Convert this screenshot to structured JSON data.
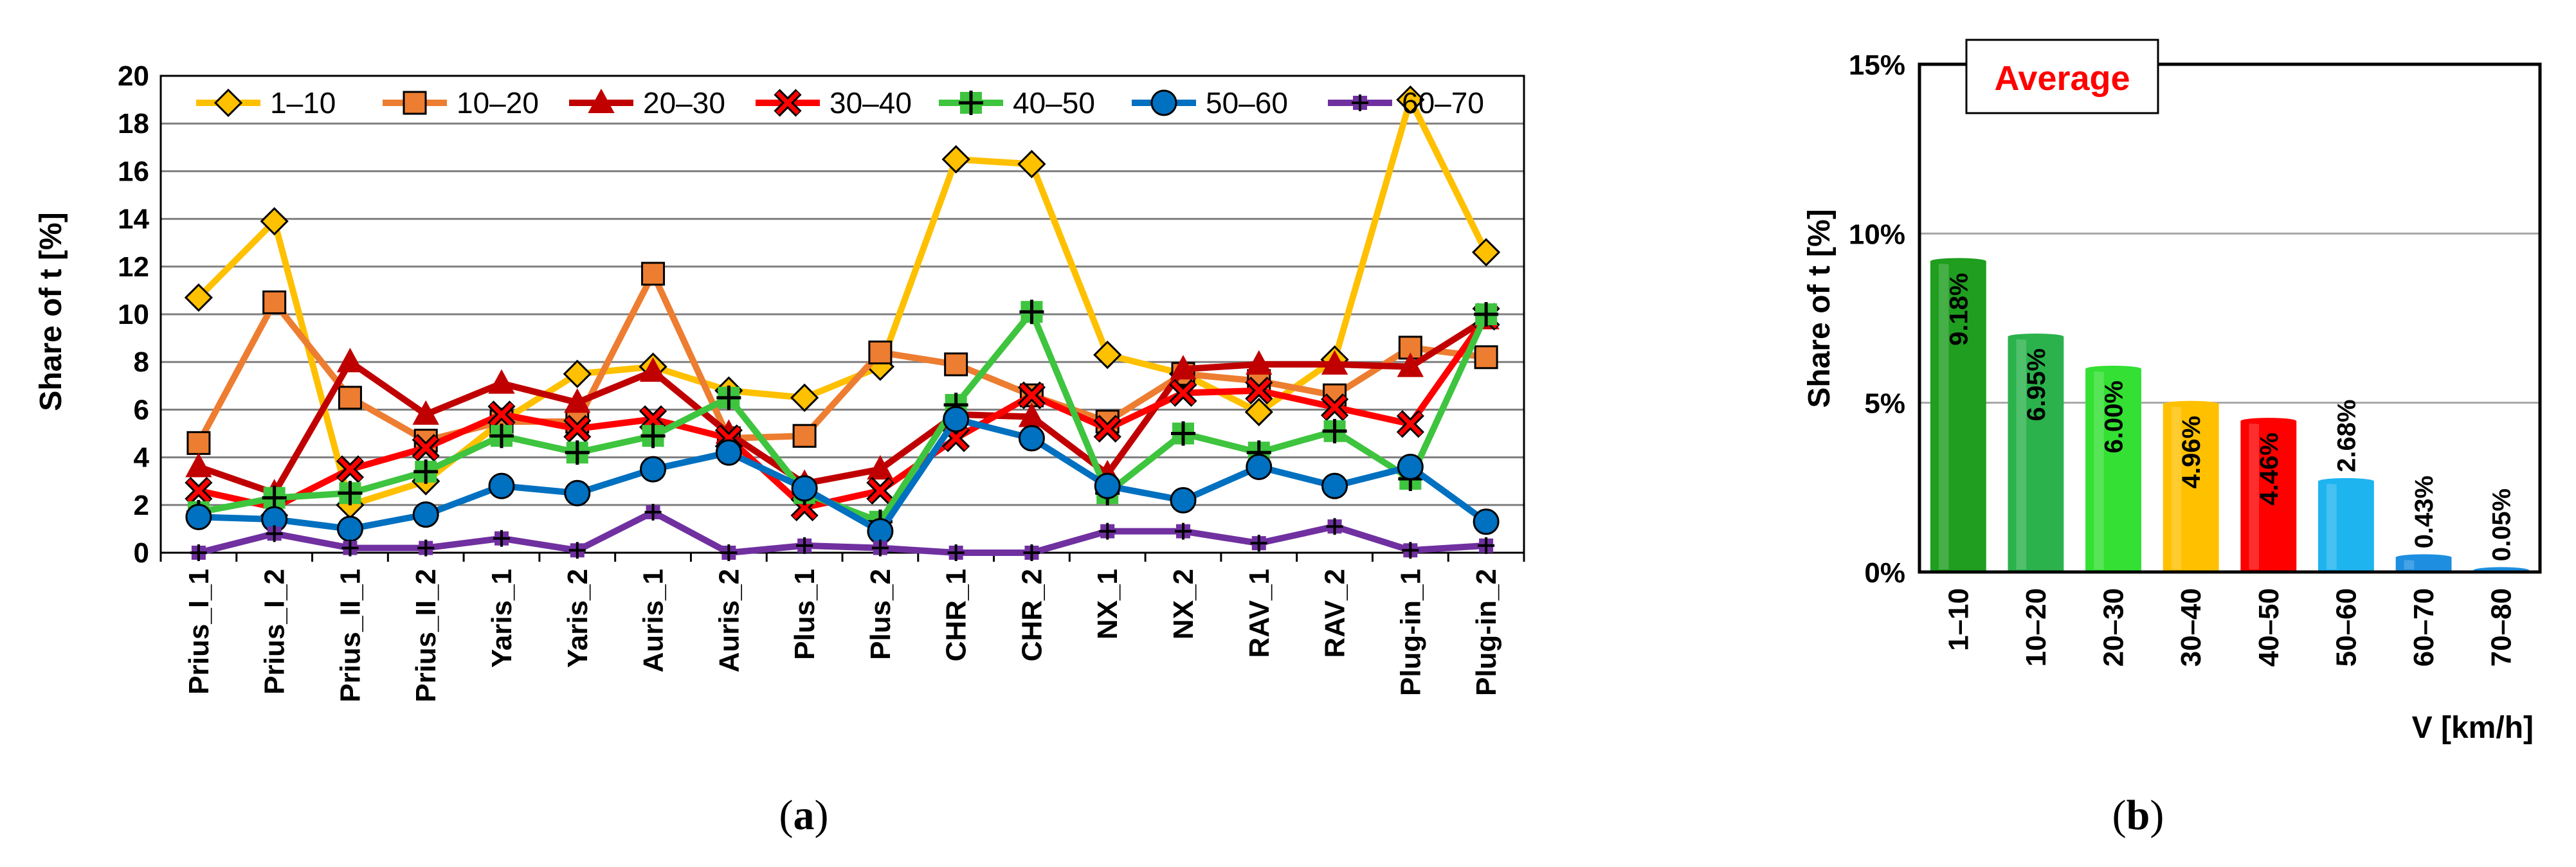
{
  "chart_data": [
    {
      "type": "line",
      "panel_label": "(a)",
      "panel_label_letter": "a",
      "ylabel": "Share of t [%]",
      "xlabel": "",
      "ylim": [
        0,
        20
      ],
      "yticks": [
        0,
        2,
        4,
        6,
        8,
        10,
        12,
        14,
        16,
        18,
        20
      ],
      "grid": "horizontal",
      "legend_position": "top",
      "categories": [
        "Prius_I_1",
        "Prius_I_2",
        "Prius_II_1",
        "Prius_II_2",
        "Yaris_1",
        "Yaris_2",
        "Auris_1",
        "Auris_2",
        "Plus_1",
        "Plus_2",
        "CHR_1",
        "CHR_2",
        "NX_1",
        "NX_2",
        "RAV_1",
        "RAV_2",
        "Plug-in_1",
        "Plug-in_2"
      ],
      "series": [
        {
          "name": "1–10",
          "color": "#FFC000",
          "marker": "diamond",
          "values": [
            10.7,
            13.9,
            2.0,
            3.0,
            5.5,
            7.5,
            7.8,
            6.8,
            6.5,
            7.8,
            16.5,
            16.3,
            8.3,
            7.5,
            5.9,
            8.1,
            19.0,
            12.6
          ]
        },
        {
          "name": "10–20",
          "color": "#ED7D31",
          "marker": "square",
          "values": [
            4.6,
            10.5,
            6.5,
            4.7,
            5.5,
            5.5,
            11.7,
            4.8,
            4.9,
            8.4,
            7.9,
            6.6,
            5.5,
            7.5,
            7.2,
            6.6,
            8.6,
            8.2
          ]
        },
        {
          "name": "20–30",
          "color": "#C00000",
          "marker": "triangle",
          "values": [
            3.6,
            2.5,
            8.0,
            5.8,
            7.1,
            6.3,
            7.6,
            5.0,
            2.9,
            3.5,
            5.8,
            5.7,
            3.3,
            7.7,
            7.9,
            7.9,
            7.8,
            9.8
          ]
        },
        {
          "name": "30–40",
          "color": "#FF0000",
          "marker": "x",
          "values": [
            2.6,
            1.9,
            3.5,
            4.4,
            5.8,
            5.2,
            5.6,
            4.8,
            1.9,
            2.6,
            4.8,
            6.6,
            5.2,
            6.7,
            6.8,
            6.1,
            5.4,
            9.9
          ]
        },
        {
          "name": "40–50",
          "color": "#3EC43E",
          "marker": "plus",
          "values": [
            1.7,
            2.3,
            2.5,
            3.4,
            4.9,
            4.2,
            4.9,
            6.5,
            2.5,
            1.3,
            6.2,
            10.1,
            2.5,
            5.0,
            4.2,
            5.1,
            3.1,
            10.0
          ]
        },
        {
          "name": "50–60",
          "color": "#0070C0",
          "marker": "circle",
          "values": [
            1.5,
            1.4,
            1.0,
            1.6,
            2.8,
            2.5,
            3.5,
            4.2,
            2.7,
            0.9,
            5.6,
            4.8,
            2.8,
            2.2,
            3.6,
            2.8,
            3.6,
            1.3
          ]
        },
        {
          "name": "60–70",
          "color": "#7030A0",
          "marker": "smallplus",
          "values": [
            0.0,
            0.8,
            0.2,
            0.2,
            0.6,
            0.1,
            1.7,
            0.0,
            0.3,
            0.2,
            0.0,
            0.0,
            0.9,
            0.9,
            0.4,
            1.1,
            0.1,
            0.3
          ]
        }
      ]
    },
    {
      "type": "bar",
      "panel_label": "(b)",
      "panel_label_letter": "b",
      "annotation": "Average",
      "annotation_color": "#FF0000",
      "ylabel": "Share of t [%]",
      "xlabel": "V [km/h]",
      "ylim": [
        0,
        15
      ],
      "yticks": [
        "0%",
        "5%",
        "10%",
        "15%"
      ],
      "ytick_values": [
        0,
        5,
        10,
        15
      ],
      "grid": "horizontal",
      "categories": [
        "1–10",
        "10–20",
        "20–30",
        "30–40",
        "40–50",
        "50–60",
        "60–70",
        "70–80"
      ],
      "values": [
        9.18,
        6.95,
        6.0,
        4.96,
        4.46,
        2.68,
        0.43,
        0.05
      ],
      "value_labels": [
        "9.18%",
        "6.95%",
        "6.00%",
        "4.96%",
        "4.46%",
        "2.68%",
        "0.43%",
        "0.05%"
      ],
      "colors": [
        "#1F9E1F",
        "#2BB24C",
        "#33E033",
        "#FFC000",
        "#FF0000",
        "#1EB4F0",
        "#1E8FE0",
        "#1E8FE0"
      ]
    }
  ]
}
